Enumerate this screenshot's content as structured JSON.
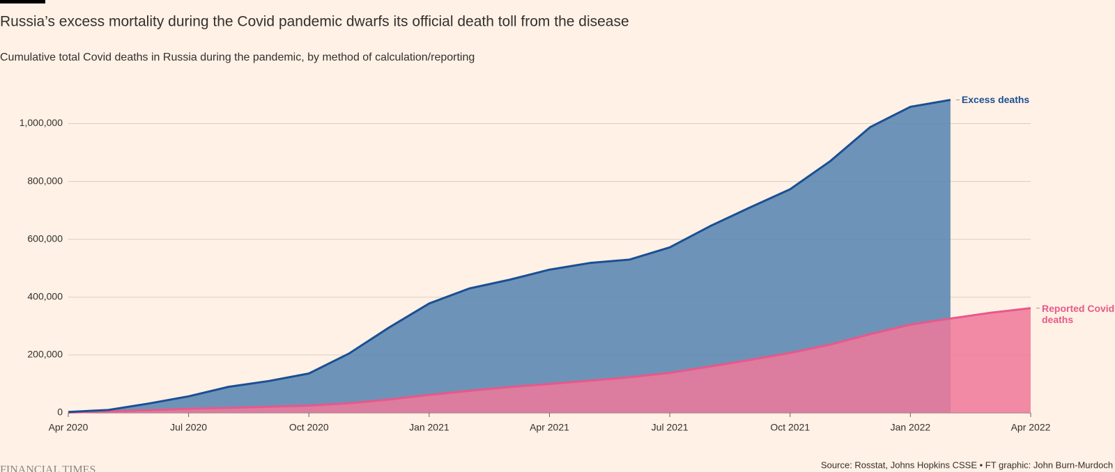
{
  "chart_data": {
    "type": "area",
    "title": "Russia’s excess mortality during the Covid pandemic dwarfs its official death toll from the disease",
    "subtitle": "Cumulative total Covid deaths in Russia during the pandemic, by method of calculation/reporting",
    "source": "Source: Rosstat, Johns Hopkins CSSE • FT graphic: John Burn-Murdoch",
    "brand": "FINANCIAL TIMES",
    "x": [
      "2020-04",
      "2020-05",
      "2020-06",
      "2020-07",
      "2020-08",
      "2020-09",
      "2020-10",
      "2020-11",
      "2020-12",
      "2021-01",
      "2021-02",
      "2021-03",
      "2021-04",
      "2021-05",
      "2021-06",
      "2021-07",
      "2021-08",
      "2021-09",
      "2021-10",
      "2021-11",
      "2021-12",
      "2022-01",
      "2022-02",
      "2022-03",
      "2022-04"
    ],
    "xlim": [
      "2020-04",
      "2022-04"
    ],
    "xticks": [
      {
        "value": "2020-04",
        "label": "Apr 2020"
      },
      {
        "value": "2020-07",
        "label": "Jul 2020"
      },
      {
        "value": "2020-10",
        "label": "Oct 2020"
      },
      {
        "value": "2021-01",
        "label": "Jan 2021"
      },
      {
        "value": "2021-04",
        "label": "Apr 2021"
      },
      {
        "value": "2021-07",
        "label": "Jul 2021"
      },
      {
        "value": "2021-10",
        "label": "Oct 2021"
      },
      {
        "value": "2022-01",
        "label": "Jan 2022"
      },
      {
        "value": "2022-04",
        "label": "Apr 2022"
      }
    ],
    "ylim": [
      0,
      1100000
    ],
    "yticks": [
      0,
      {
        "value": 200000,
        "label": "200,000"
      },
      {
        "value": 400000,
        "label": "400,000"
      },
      {
        "value": 600000,
        "label": "600,000"
      },
      {
        "value": 800000,
        "label": "800,000"
      },
      {
        "value": 1000000,
        "label": "1,000,000"
      }
    ],
    "grid": true,
    "series": [
      {
        "name": "Excess deaths",
        "color": "#1a4f93",
        "fill": "#5582b0",
        "values": [
          3000,
          10000,
          32000,
          57000,
          90000,
          110000,
          136000,
          205000,
          295000,
          378000,
          430000,
          460000,
          495000,
          518000,
          530000,
          572000,
          645000,
          710000,
          773000,
          870000,
          988000,
          1058000,
          1082000,
          null,
          null
        ]
      },
      {
        "name": "Reported Covid deaths",
        "color": "#e8588a",
        "fill": "#f0789a",
        "values": [
          1000,
          5000,
          9000,
          14000,
          17000,
          21000,
          25000,
          33000,
          46000,
          62000,
          76000,
          89000,
          100000,
          111000,
          123000,
          138000,
          160000,
          183000,
          207000,
          236000,
          272000,
          305000,
          326000,
          346000,
          362000
        ]
      }
    ]
  }
}
